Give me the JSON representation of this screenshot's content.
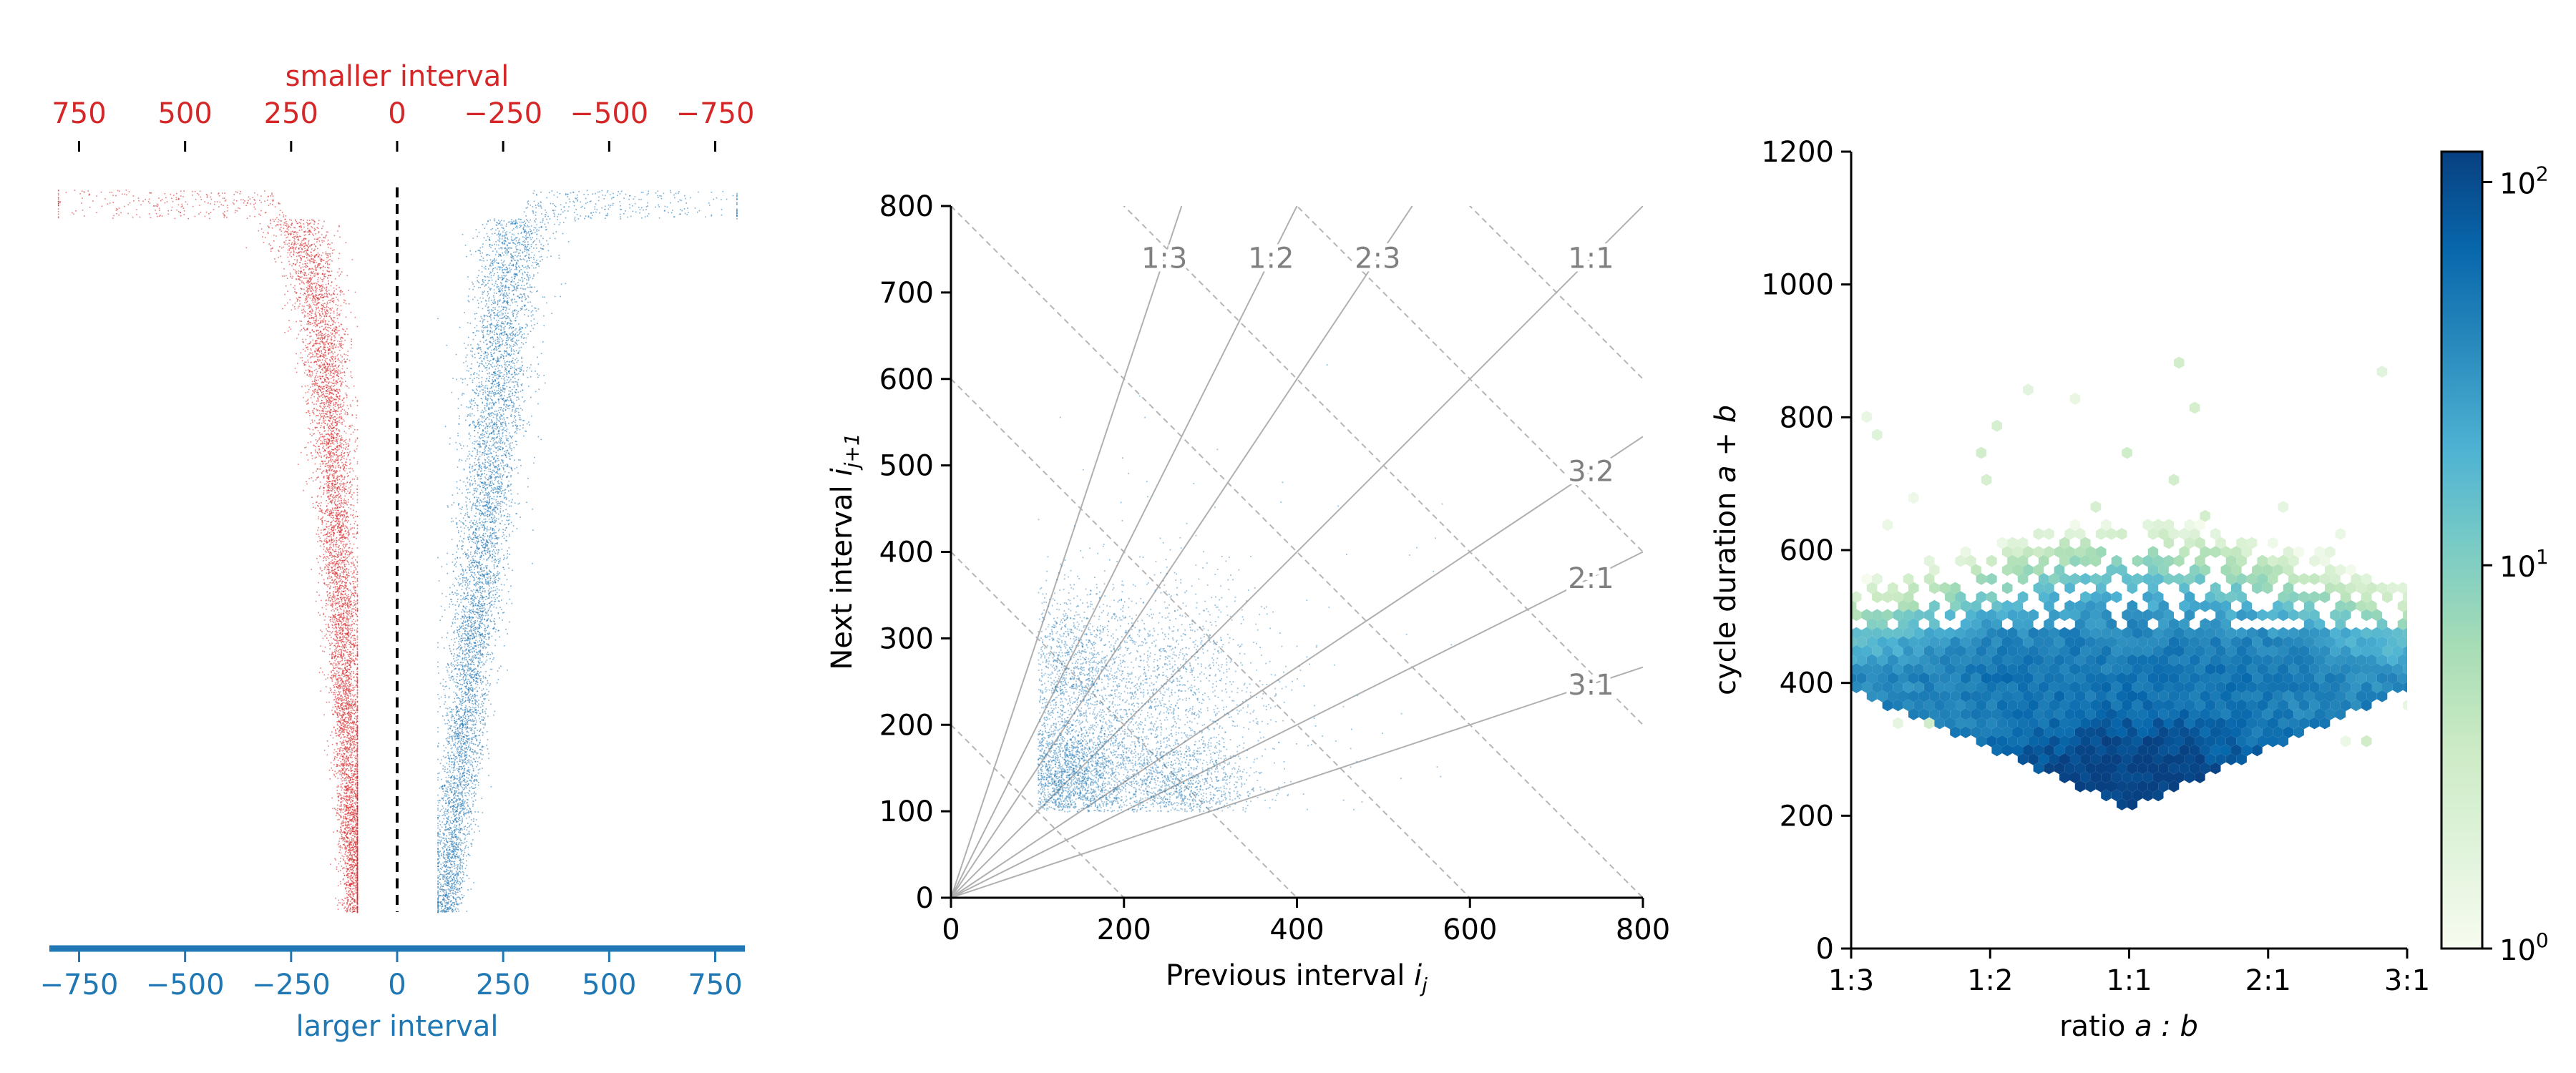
{
  "chart_data": [
    {
      "type": "scatter",
      "panel": "left",
      "top_axis": {
        "label": "smaller interval",
        "color": "#d62728",
        "ticks": [
          750,
          500,
          250,
          0,
          -250,
          -500,
          -750
        ],
        "tick_labels": [
          "750",
          "500",
          "250",
          "0",
          "−250",
          "−500",
          "−750"
        ],
        "reversed": true
      },
      "bottom_axis": {
        "label": "larger interval",
        "color": "#1f77b4",
        "ticks": [
          -750,
          -500,
          -250,
          0,
          250,
          500,
          750
        ],
        "tick_labels": [
          "−750",
          "−500",
          "−250",
          "0",
          "250",
          "500",
          "750"
        ]
      },
      "xlim": [
        -820,
        820
      ],
      "series": [
        {
          "color": "#d62728",
          "side": "smaller",
          "profile_median": [
            [
              0,
              300
            ],
            [
              0.05,
              240
            ],
            [
              0.1,
              205
            ],
            [
              0.2,
              175
            ],
            [
              0.3,
              160
            ],
            [
              0.4,
              150
            ],
            [
              0.5,
              140
            ],
            [
              0.6,
              130
            ],
            [
              0.7,
              122
            ],
            [
              0.8,
              113
            ],
            [
              0.9,
              106
            ],
            [
              1,
              100
            ]
          ]
        },
        {
          "color": "#1f77b4",
          "side": "larger",
          "profile_median": [
            [
              0,
              310
            ],
            [
              0.05,
              290
            ],
            [
              0.1,
              265
            ],
            [
              0.2,
              245
            ],
            [
              0.3,
              230
            ],
            [
              0.4,
              215
            ],
            [
              0.5,
              200
            ],
            [
              0.6,
              180
            ],
            [
              0.7,
              165
            ],
            [
              0.8,
              150
            ],
            [
              0.9,
              130
            ],
            [
              1,
              115
            ]
          ]
        }
      ],
      "center_line": {
        "x": 0,
        "style": "dashed"
      }
    },
    {
      "type": "scatter",
      "panel": "middle",
      "xlabel": "Previous interval ",
      "xlabel_sub": "j",
      "ylabel": "Next interval ",
      "ylabel_sub": "j+1",
      "label_symbol": "i",
      "xlim": [
        0,
        800
      ],
      "ylim": [
        0,
        800
      ],
      "xticks": [
        0,
        200,
        400,
        600,
        800
      ],
      "yticks": [
        0,
        100,
        200,
        300,
        400,
        500,
        600,
        700,
        800
      ],
      "point_color": "#1f77b4",
      "min_interval": 100,
      "clusters": [
        {
          "x": 130,
          "y": 140,
          "n": 2600,
          "sx": 40,
          "sy": 35
        },
        {
          "x": 260,
          "y": 130,
          "n": 1300,
          "sx": 45,
          "sy": 30
        },
        {
          "x": 140,
          "y": 270,
          "n": 1100,
          "sx": 35,
          "sy": 45
        },
        {
          "x": 260,
          "y": 260,
          "n": 700,
          "sx": 50,
          "sy": 50
        },
        {
          "x": 200,
          "y": 200,
          "n": 1000,
          "sx": 70,
          "sy": 70
        },
        {
          "x": 300,
          "y": 300,
          "n": 400,
          "sx": 150,
          "sy": 150
        }
      ],
      "ratio_lines": [
        {
          "label": "1:3",
          "a": 1,
          "b": 3
        },
        {
          "label": "1:2",
          "a": 1,
          "b": 2
        },
        {
          "label": "2:3",
          "a": 2,
          "b": 3
        },
        {
          "label": "1:1",
          "a": 1,
          "b": 1
        },
        {
          "label": "3:2",
          "a": 3,
          "b": 2
        },
        {
          "label": "2:1",
          "a": 2,
          "b": 1
        },
        {
          "label": "3:1",
          "a": 3,
          "b": 1
        }
      ],
      "iso_duration_lines": [
        200,
        400,
        600,
        800,
        1000,
        1200,
        1400,
        1600
      ],
      "ratio_label_color": "#808080"
    },
    {
      "type": "heatmap",
      "panel": "right",
      "xlabel": "ratio ",
      "xlabel_math": "a : b",
      "ylabel": "cycle duration ",
      "ylabel_math": "a + b",
      "xticks": [
        "1:3",
        "1:2",
        "1:1",
        "2:1",
        "3:1"
      ],
      "yticks": [
        0,
        200,
        400,
        600,
        800,
        1000,
        1200
      ],
      "ylim": [
        0,
        1200
      ],
      "colormap": "GnBu",
      "colorbar": {
        "scale": "log",
        "ticks": [
          "10",
          "10",
          "10"
        ],
        "exponents": [
          "0",
          "1",
          "2"
        ],
        "range": [
          1,
          120
        ]
      },
      "density_modes": [
        {
          "ratio_pos": 0.5,
          "duration": 265,
          "peak": 110
        },
        {
          "ratio_pos": 0.5,
          "duration": 520,
          "peak": 30
        },
        {
          "ratio_pos": 0.26,
          "duration": 420,
          "peak": 35
        },
        {
          "ratio_pos": 0.74,
          "duration": 420,
          "peak": 35
        }
      ]
    }
  ]
}
